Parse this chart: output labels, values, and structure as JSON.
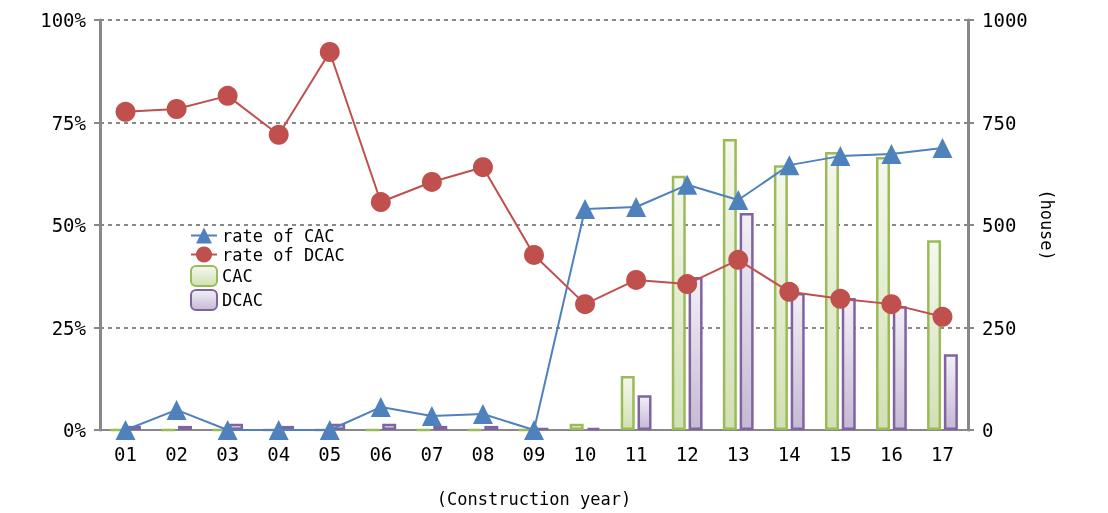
{
  "chart_data": {
    "type": "bar",
    "categories": [
      "01",
      "02",
      "03",
      "04",
      "05",
      "06",
      "07",
      "08",
      "09",
      "10",
      "11",
      "12",
      "13",
      "14",
      "15",
      "16",
      "17"
    ],
    "series": [
      {
        "name": "rate of CAC",
        "type": "line",
        "marker": "triangle",
        "color": "#4f81bd",
        "values": [
          0,
          4.9,
          0,
          0,
          0,
          5.6,
          3.4,
          3.9,
          0,
          53.9,
          54.4,
          59.8,
          56.1,
          64.6,
          66.8,
          67.3,
          68.8
        ]
      },
      {
        "name": "rate of DCAC",
        "type": "line",
        "marker": "circle",
        "color": "#c0504d",
        "values": [
          77.6,
          78.3,
          81.5,
          72,
          92.2,
          55.6,
          60.5,
          64.1,
          42.7,
          30.7,
          36.6,
          35.6,
          41.5,
          33.7,
          32,
          30.7,
          27.6
        ]
      },
      {
        "name": "CAC",
        "axis": "y2",
        "color": "#9bbb59",
        "values": [
          0,
          0,
          0,
          0,
          0,
          0,
          0,
          0,
          0,
          15,
          132,
          620,
          710,
          646,
          678,
          666,
          463
        ]
      },
      {
        "name": "DCAC",
        "axis": "y2",
        "color": "#8064a2",
        "values": [
          10,
          10,
          15,
          10,
          15,
          15,
          10,
          10,
          5,
          5,
          85,
          373,
          529,
          334,
          322,
          302,
          185
        ]
      }
    ],
    "xlabel": "(Construction year)",
    "y2label": "(house)",
    "ylim": [
      0,
      100
    ],
    "yticks": [
      {
        "value": 0,
        "label": "0%"
      },
      {
        "value": 25,
        "label": "25%"
      },
      {
        "value": 50,
        "label": "50%"
      },
      {
        "value": 75,
        "label": "75%"
      },
      {
        "value": 100,
        "label": "100%"
      }
    ],
    "y2lim": [
      0,
      1000
    ],
    "y2ticks": [
      0,
      250,
      500,
      750,
      1000
    ],
    "grid": "y",
    "legend": "left"
  }
}
